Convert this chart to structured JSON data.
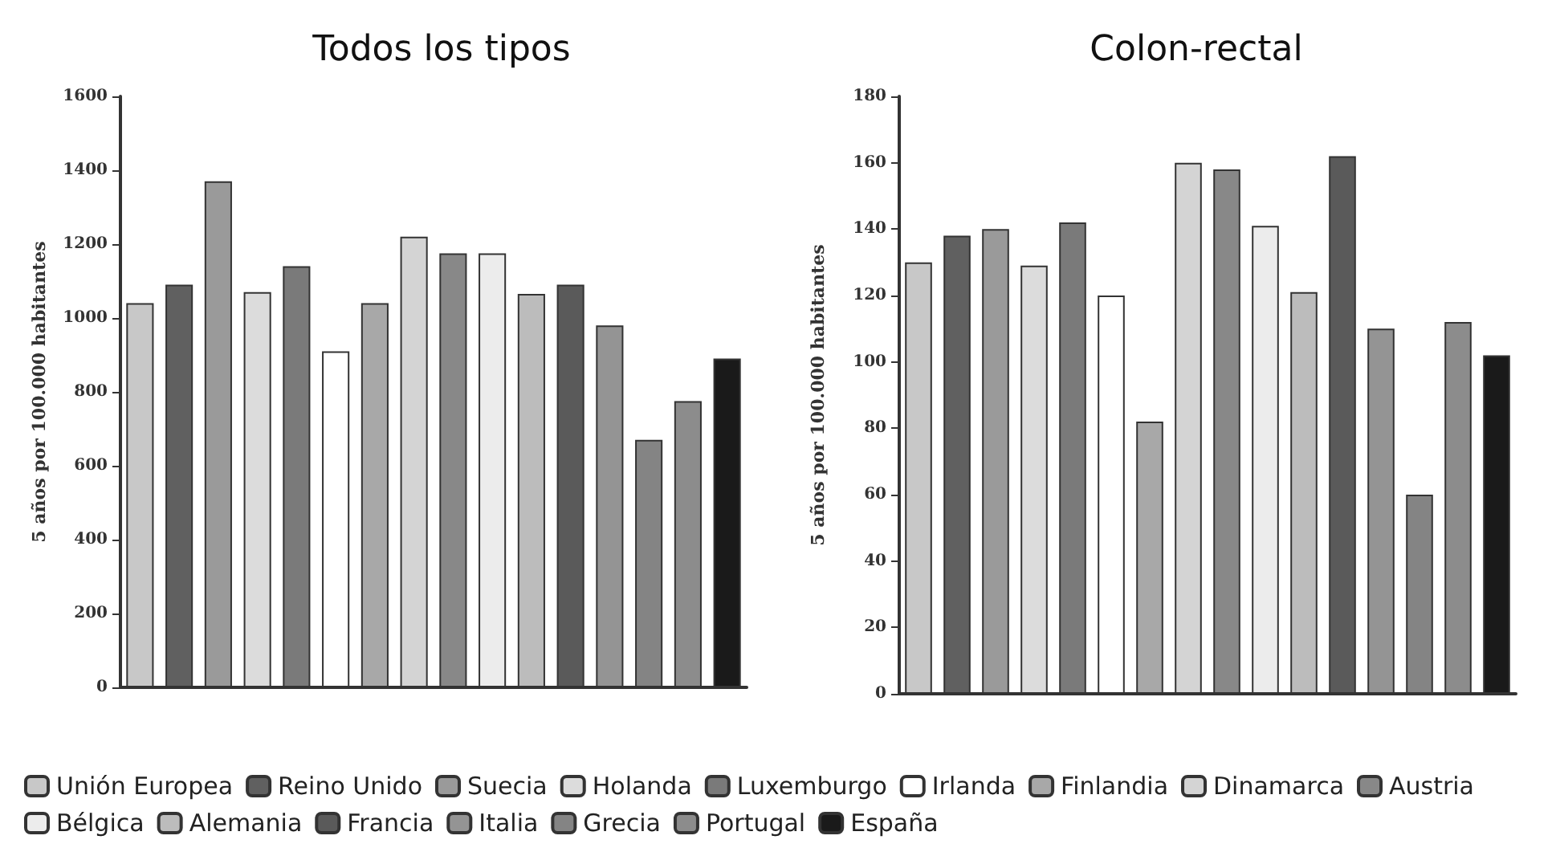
{
  "chart_data": [
    {
      "type": "bar",
      "title": "Todos los tipos",
      "ylabel": "5 años por 100.000 habitantes",
      "categories": [
        null,
        null,
        null,
        null,
        null,
        null,
        null,
        null,
        null,
        null,
        null,
        null,
        null,
        null,
        null,
        null
      ],
      "stacked": true,
      "ylim": [
        0,
        1600
      ],
      "yticks": [
        0,
        200,
        400,
        600,
        800,
        1000,
        1200,
        1400,
        1600
      ],
      "grid": false,
      "legend": "bottom",
      "series": [
        {
          "name": "Unión Europea",
          "color": "#c8c8c8",
          "values": [
            1040,
            null,
            null,
            null,
            null,
            null,
            null,
            null,
            null,
            null,
            null,
            null,
            null,
            null,
            null,
            null
          ]
        },
        {
          "name": "Reino Unido",
          "color": "#606060",
          "values": [
            null,
            1090,
            null,
            null,
            null,
            null,
            null,
            null,
            null,
            null,
            null,
            null,
            null,
            null,
            null,
            null
          ]
        },
        {
          "name": "Suecia",
          "color": "#9a9a9a",
          "values": [
            null,
            null,
            1370,
            null,
            null,
            null,
            null,
            null,
            null,
            null,
            null,
            null,
            null,
            null,
            null,
            null
          ]
        },
        {
          "name": "Holanda",
          "color": "#dcdcdc",
          "values": [
            null,
            null,
            null,
            1070,
            null,
            null,
            null,
            null,
            null,
            null,
            null,
            null,
            null,
            null,
            null,
            null
          ]
        },
        {
          "name": "Luxemburgo",
          "color": "#7a7a7a",
          "values": [
            null,
            null,
            null,
            null,
            1140,
            null,
            null,
            null,
            null,
            null,
            null,
            null,
            null,
            null,
            null,
            null
          ]
        },
        {
          "name": "Irlanda",
          "color": "#ffffff",
          "values": [
            null,
            null,
            null,
            null,
            null,
            910,
            null,
            null,
            null,
            null,
            null,
            null,
            null,
            null,
            null,
            null
          ]
        },
        {
          "name": "Finlandia",
          "color": "#a8a8a8",
          "values": [
            null,
            null,
            null,
            null,
            null,
            null,
            1040,
            null,
            null,
            null,
            null,
            null,
            null,
            null,
            null,
            null
          ]
        },
        {
          "name": "Dinamarca",
          "color": "#d4d4d4",
          "values": [
            null,
            null,
            null,
            null,
            null,
            null,
            null,
            1220,
            null,
            null,
            null,
            null,
            null,
            null,
            null,
            null
          ]
        },
        {
          "name": "Austria",
          "color": "#888888",
          "values": [
            null,
            null,
            null,
            null,
            null,
            null,
            null,
            null,
            1175,
            null,
            null,
            null,
            null,
            null,
            null,
            null
          ]
        },
        {
          "name": "Bélgica",
          "color": "#ececec",
          "values": [
            null,
            null,
            null,
            null,
            null,
            null,
            null,
            null,
            null,
            1175,
            null,
            null,
            null,
            null,
            null,
            null
          ]
        },
        {
          "name": "Alemania",
          "color": "#bcbcbc",
          "values": [
            null,
            null,
            null,
            null,
            null,
            null,
            null,
            null,
            null,
            null,
            1065,
            null,
            null,
            null,
            null,
            null
          ]
        },
        {
          "name": "Francia",
          "color": "#5a5a5a",
          "values": [
            null,
            null,
            null,
            null,
            null,
            null,
            null,
            null,
            null,
            null,
            null,
            1090,
            null,
            null,
            null,
            null
          ]
        },
        {
          "name": "Italia",
          "color": "#949494",
          "values": [
            null,
            null,
            null,
            null,
            null,
            null,
            null,
            null,
            null,
            null,
            null,
            null,
            980,
            null,
            null,
            null
          ]
        },
        {
          "name": "Grecia",
          "color": "#848484",
          "values": [
            null,
            null,
            null,
            null,
            null,
            null,
            null,
            null,
            null,
            null,
            null,
            null,
            null,
            670,
            null,
            null
          ]
        },
        {
          "name": "Portugal",
          "color": "#8c8c8c",
          "values": [
            null,
            null,
            null,
            null,
            null,
            null,
            null,
            null,
            null,
            null,
            null,
            null,
            null,
            null,
            775,
            null
          ]
        },
        {
          "name": "España",
          "color": "#1a1a1a",
          "values": [
            null,
            null,
            null,
            null,
            null,
            null,
            null,
            null,
            null,
            null,
            null,
            null,
            null,
            null,
            null,
            890
          ]
        }
      ]
    },
    {
      "type": "bar",
      "title": "Colon-rectal",
      "ylabel": "5 años por 100.000 habitantes",
      "categories": [
        null,
        null,
        null,
        null,
        null,
        null,
        null,
        null,
        null,
        null,
        null,
        null,
        null,
        null,
        null,
        null
      ],
      "stacked": true,
      "ylim": [
        0,
        180
      ],
      "yticks": [
        0,
        20,
        40,
        60,
        80,
        100,
        120,
        140,
        160,
        180
      ],
      "grid": false,
      "series": [
        {
          "color": "#c8c8c8",
          "values": [
            130,
            null,
            null,
            null,
            null,
            null,
            null,
            null,
            null,
            null,
            null,
            null,
            null,
            null,
            null,
            null
          ]
        },
        {
          "color": "#606060",
          "values": [
            null,
            138,
            null,
            null,
            null,
            null,
            null,
            null,
            null,
            null,
            null,
            null,
            null,
            null,
            null,
            null
          ]
        },
        {
          "color": "#9a9a9a",
          "values": [
            null,
            null,
            140,
            null,
            null,
            null,
            null,
            null,
            null,
            null,
            null,
            null,
            null,
            null,
            null,
            null
          ]
        },
        {
          "color": "#dcdcdc",
          "values": [
            null,
            null,
            null,
            129,
            null,
            null,
            null,
            null,
            null,
            null,
            null,
            null,
            null,
            null,
            null,
            null
          ]
        },
        {
          "color": "#7a7a7a",
          "values": [
            null,
            null,
            null,
            null,
            142,
            null,
            null,
            null,
            null,
            null,
            null,
            null,
            null,
            null,
            null,
            null
          ]
        },
        {
          "color": "#ffffff",
          "values": [
            null,
            null,
            null,
            null,
            null,
            120,
            null,
            null,
            null,
            null,
            null,
            null,
            null,
            null,
            null,
            null
          ]
        },
        {
          "color": "#a8a8a8",
          "values": [
            null,
            null,
            null,
            null,
            null,
            null,
            82,
            null,
            null,
            null,
            null,
            null,
            null,
            null,
            null,
            null
          ]
        },
        {
          "color": "#d4d4d4",
          "values": [
            null,
            null,
            null,
            null,
            null,
            null,
            null,
            160,
            null,
            null,
            null,
            null,
            null,
            null,
            null,
            null
          ]
        },
        {
          "color": "#888888",
          "values": [
            null,
            null,
            null,
            null,
            null,
            null,
            null,
            null,
            158,
            null,
            null,
            null,
            null,
            null,
            null,
            null
          ]
        },
        {
          "color": "#ececec",
          "values": [
            null,
            null,
            null,
            null,
            null,
            null,
            null,
            null,
            null,
            141,
            null,
            null,
            null,
            null,
            null,
            null
          ]
        },
        {
          "color": "#bcbcbc",
          "values": [
            null,
            null,
            null,
            null,
            null,
            null,
            null,
            null,
            null,
            null,
            121,
            null,
            null,
            null,
            null,
            null
          ]
        },
        {
          "color": "#5a5a5a",
          "values": [
            null,
            null,
            null,
            null,
            null,
            null,
            null,
            null,
            null,
            null,
            null,
            162,
            null,
            null,
            null,
            null
          ]
        },
        {
          "color": "#949494",
          "values": [
            null,
            null,
            null,
            null,
            null,
            null,
            null,
            null,
            null,
            null,
            null,
            null,
            110,
            null,
            null,
            null
          ]
        },
        {
          "color": "#848484",
          "values": [
            null,
            null,
            null,
            null,
            null,
            null,
            null,
            null,
            null,
            null,
            null,
            null,
            null,
            60,
            null,
            null
          ]
        },
        {
          "color": "#8c8c8c",
          "values": [
            null,
            null,
            null,
            null,
            null,
            null,
            null,
            null,
            null,
            null,
            null,
            null,
            null,
            null,
            112,
            null
          ]
        },
        {
          "color": "#1a1a1a",
          "values": [
            null,
            null,
            null,
            null,
            null,
            null,
            null,
            null,
            null,
            null,
            null,
            null,
            null,
            null,
            null,
            102
          ]
        }
      ]
    }
  ]
}
